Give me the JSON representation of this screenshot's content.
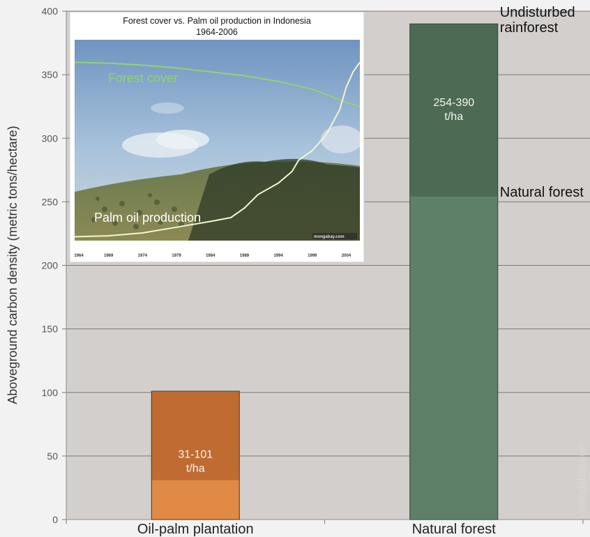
{
  "chart_data": [
    {
      "type": "bar",
      "ylabel": "Aboveground carbon density (metric tons/hectare)",
      "ylim": [
        0,
        400
      ],
      "yticks": [
        0,
        50,
        100,
        150,
        200,
        250,
        300,
        350,
        400
      ],
      "grid": true,
      "categories": [
        "Oil-palm plantation",
        "Natural forest"
      ],
      "series": [
        {
          "values": [
            31,
            254
          ],
          "colors": [
            "#e08a45",
            "#5e8068"
          ]
        },
        {
          "values": [
            101,
            390
          ],
          "colors": [
            "#c06b32",
            "#4c6a54"
          ]
        }
      ],
      "bar_labels": [
        [
          "31-101",
          "t/ha"
        ],
        [
          "254-390",
          "t/ha"
        ]
      ],
      "annotations": [
        {
          "lines": [
            "Undisturbed",
            "rainforest"
          ],
          "value": 390
        },
        {
          "lines": [
            "Natural forest"
          ],
          "value": 254
        }
      ],
      "watermark": "mongabay.com",
      "background": "#d3cfcc"
    },
    {
      "type": "line",
      "title_lines": [
        "Forest cover vs. Palm oil production in Indonesia",
        "1964-2006"
      ],
      "x_ticks": [
        "1964",
        "1969",
        "1974",
        "1979",
        "1984",
        "1989",
        "1994",
        "1999",
        "2004"
      ],
      "series": [
        {
          "name": "Forest cover",
          "color": "#8fd46e",
          "x": [
            1964,
            1969,
            1974,
            1979,
            1984,
            1989,
            1994,
            1999,
            2004,
            2006
          ],
          "y": [
            0.93,
            0.925,
            0.915,
            0.9,
            0.88,
            0.86,
            0.83,
            0.79,
            0.72,
            0.7
          ]
        },
        {
          "name": "Palm oil production",
          "color": "#f3f6d0",
          "x": [
            1964,
            1969,
            1974,
            1979,
            1984,
            1987,
            1989,
            1991,
            1994,
            1996,
            1997,
            1999,
            2001,
            2003,
            2004,
            2005,
            2006
          ],
          "y": [
            0.02,
            0.025,
            0.04,
            0.07,
            0.1,
            0.12,
            0.17,
            0.24,
            0.3,
            0.36,
            0.42,
            0.47,
            0.55,
            0.68,
            0.8,
            0.88,
            0.93
          ]
        }
      ],
      "watermark": "mongabay.com"
    }
  ]
}
